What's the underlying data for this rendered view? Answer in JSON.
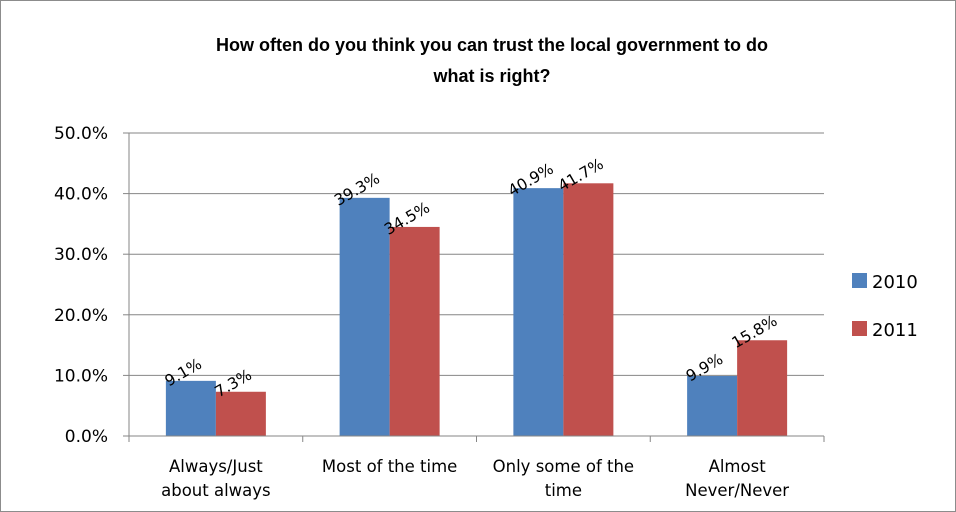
{
  "chart_data": {
    "type": "bar",
    "title_lines": [
      "How often do you think you can trust the local government to do",
      "what is right?"
    ],
    "categories": [
      [
        "Always/Just",
        "about always"
      ],
      [
        "Most of the time"
      ],
      [
        "Only some of the",
        "time"
      ],
      [
        "Almost",
        "Never/Never"
      ]
    ],
    "series": [
      {
        "name": "2010",
        "color": "#4f81bd",
        "values": [
          9.1,
          39.3,
          40.9,
          9.9
        ],
        "labels": [
          "9.1%",
          "39.3%",
          "40.9%",
          "9.9%"
        ]
      },
      {
        "name": "2011",
        "color": "#c0504d",
        "values": [
          7.3,
          34.5,
          41.7,
          15.8
        ],
        "labels": [
          "7.3%",
          "34.5%",
          "41.7%",
          "15.8%"
        ]
      }
    ],
    "ylim": [
      0,
      50
    ],
    "yticks": [
      "0.0%",
      "10.0%",
      "20.0%",
      "30.0%",
      "40.0%",
      "50.0%"
    ],
    "grid": true,
    "legend": "right"
  }
}
